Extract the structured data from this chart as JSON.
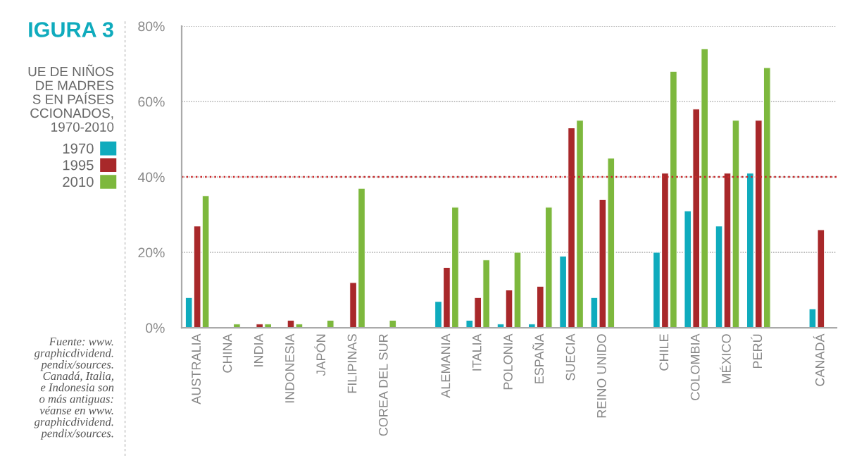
{
  "chart_data": {
    "type": "bar",
    "title": "IGURA 3",
    "subtitle": "UE DE NIÑOS\nDE MADRES\nS EN PAÍSES\nCCIONADOS,\n1970-2010",
    "annotations": [
      "Fuente: www.\ngraphicdividend.\npendix/sources.\nCanadá, Italia,\ne Indonesia son\no más antiguas:\nvéanse en www.\ngraphicdividend.\npendix/sources."
    ],
    "categories": [
      "AUSTRALIA",
      "CHINA",
      "INDIA",
      "INDONESIA",
      "JAPÓN",
      "FILIPINAS",
      "COREA DEL SUR",
      null,
      "ALEMANIA",
      "ITALIA",
      "POLONIA",
      "ESPAÑA",
      "SUECIA",
      "REINO UNIDO",
      null,
      "CHILE",
      "COLOMBIA",
      "MÉXICO",
      "PERÚ",
      null,
      "CANADÁ"
    ],
    "series": [
      {
        "name": "1970",
        "color": "#0fabbd",
        "values": [
          8,
          null,
          null,
          null,
          null,
          null,
          null,
          null,
          7,
          2,
          1,
          1,
          19,
          8,
          null,
          20,
          31,
          27,
          41,
          null,
          5
        ]
      },
      {
        "name": "1995",
        "color": "#a8282a",
        "values": [
          27,
          null,
          1,
          2,
          null,
          12,
          null,
          null,
          16,
          8,
          10,
          11,
          53,
          34,
          null,
          41,
          58,
          41,
          55,
          null,
          26
        ]
      },
      {
        "name": "2010",
        "color": "#7db83d",
        "values": [
          35,
          1,
          1,
          1,
          2,
          37,
          2,
          null,
          32,
          18,
          20,
          32,
          55,
          45,
          null,
          68,
          74,
          55,
          69,
          null,
          null
        ]
      }
    ],
    "ylim": [
      0,
      80
    ],
    "yticks": [
      {
        "value": 0,
        "label": "0%"
      },
      {
        "value": 20,
        "label": "20%"
      },
      {
        "value": 40,
        "label": "40%"
      },
      {
        "value": 60,
        "label": "60%"
      },
      {
        "value": 80,
        "label": "80%"
      }
    ],
    "ref_lines": [
      {
        "axis": "y",
        "value": 40,
        "color": "#c8282a",
        "line_style": "dotted"
      }
    ],
    "grid": "y",
    "legend": "left"
  }
}
